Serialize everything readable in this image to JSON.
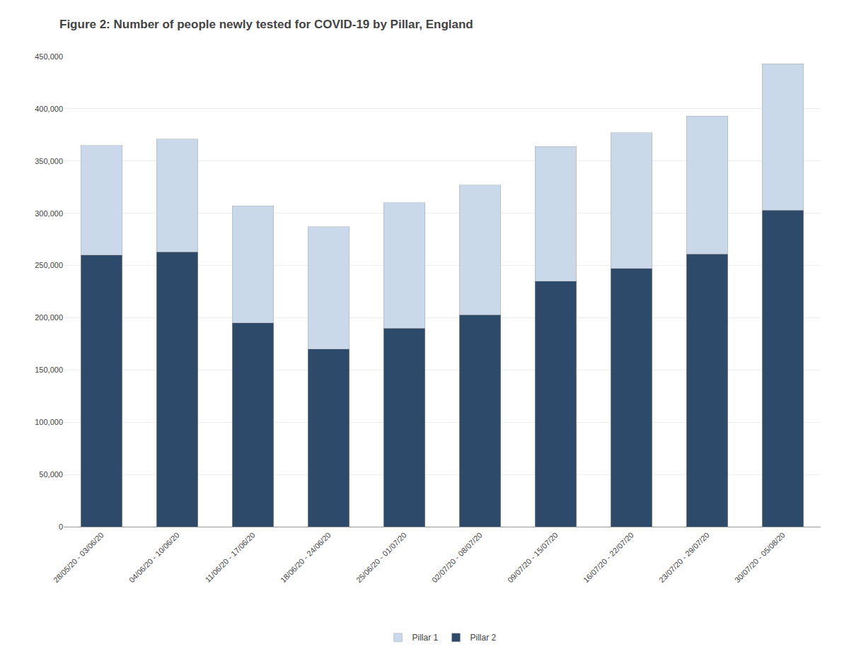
{
  "chart_data": {
    "type": "bar",
    "title": "Figure 2: Number of people newly tested for COVID-19 by Pillar, England",
    "categories": [
      "28/05/20 - 03/06/20",
      "04/06/20 - 10/06/20",
      "11/06/20 - 17/06/20",
      "18/06/20 - 24/06/20",
      "25/06/20 - 01/07/20",
      "02/07/20 - 08/07/20",
      "09/07/20 - 15/07/20",
      "16/07/20 - 22/07/20",
      "23/07/20 - 29/07/20",
      "30/07/20 - 05/08/20"
    ],
    "series": [
      {
        "name": "Pillar 2",
        "color": "#2e4a6b",
        "values": [
          260000,
          263000,
          195000,
          170000,
          190000,
          203000,
          235000,
          247000,
          261000,
          303000
        ]
      },
      {
        "name": "Pillar 1",
        "color": "#c9d9ea",
        "values": [
          105000,
          108000,
          112000,
          117000,
          120000,
          124000,
          129000,
          130000,
          132000,
          140000
        ]
      }
    ],
    "stacked": true,
    "ylim": [
      0,
      450000
    ],
    "yticks": [
      0,
      {
        "value": 50000,
        "label": "50,000"
      },
      {
        "value": 100000,
        "label": "100,000"
      },
      {
        "value": 150000,
        "label": "150,000"
      },
      {
        "value": 200000,
        "label": "200,000"
      },
      {
        "value": 250000,
        "label": "250,000"
      },
      {
        "value": 300000,
        "label": "300,000"
      },
      {
        "value": 350000,
        "label": "350,000"
      },
      {
        "value": 400000,
        "label": "400,000"
      },
      {
        "value": 450000,
        "label": "450,000"
      }
    ],
    "grid": true,
    "legend": "bottom"
  }
}
